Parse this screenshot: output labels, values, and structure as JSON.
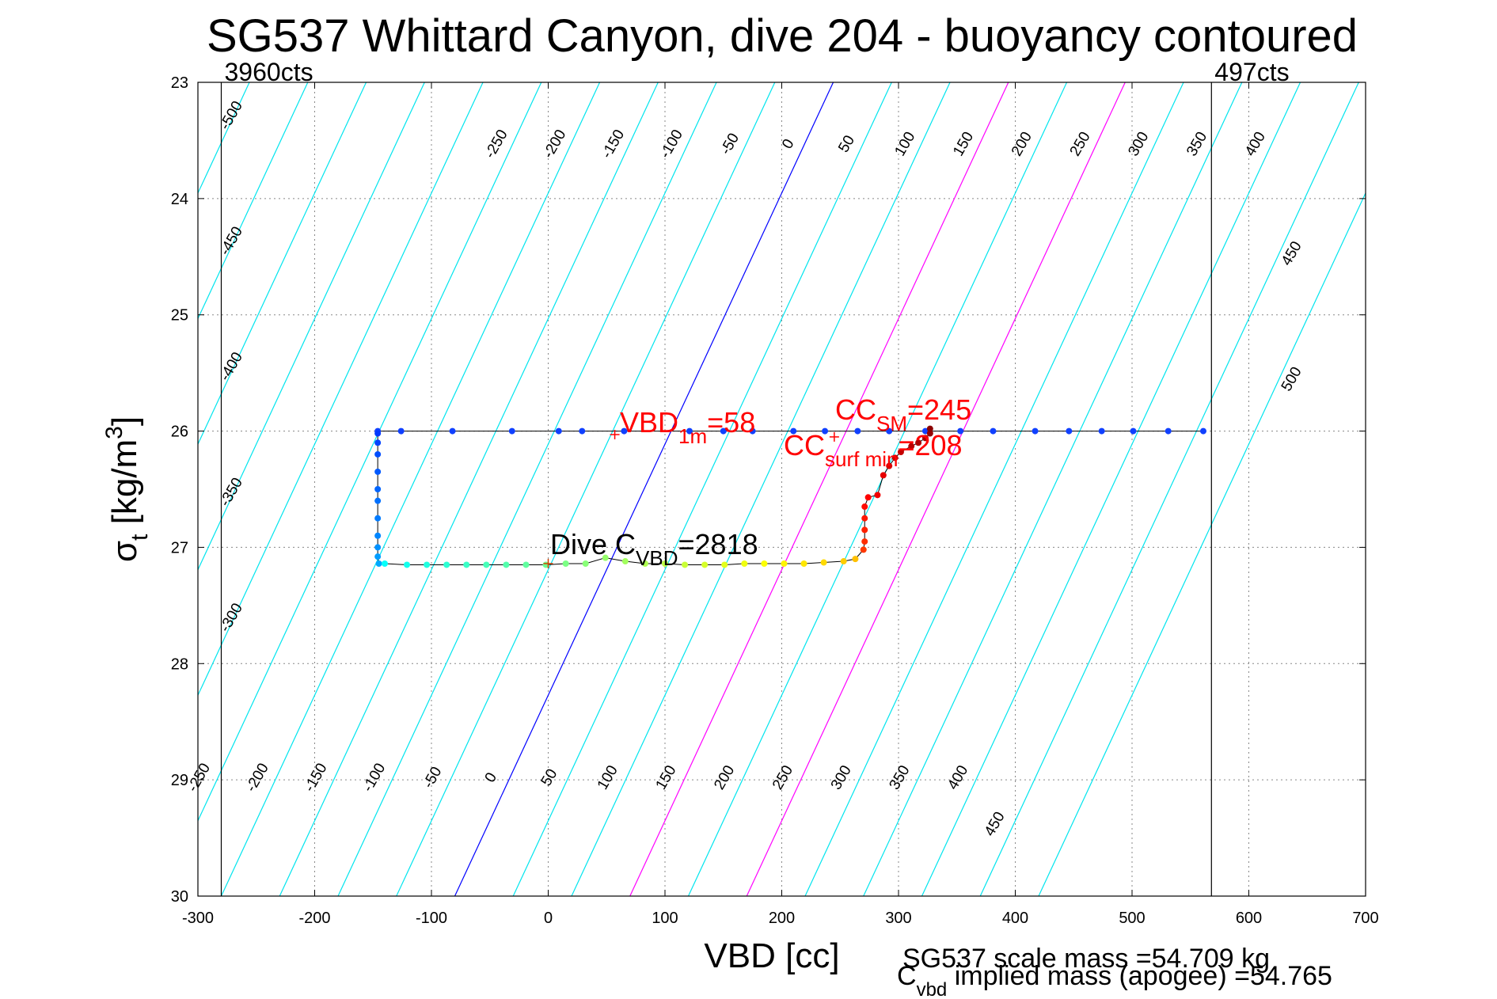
{
  "chart_data": {
    "type": "scatter",
    "title": "SG537 Whittard Canyon, dive 204 - buoyancy contoured",
    "xlabel": "VBD [cc]",
    "ylabel": {
      "sigma": "σ",
      "sub": "t",
      "unit": " [kg/m",
      "sup": "3",
      "close": "]"
    },
    "xlim": [
      -300,
      700
    ],
    "ylim": [
      23,
      30
    ],
    "y_reversed": true,
    "grid": true,
    "xticks": [
      -300,
      -200,
      -100,
      0,
      100,
      200,
      300,
      400,
      500,
      600,
      700
    ],
    "yticks": [
      23,
      24,
      25,
      26,
      27,
      28,
      29,
      30
    ],
    "vertical_limits": [
      {
        "x": -280,
        "label": "3960cts"
      },
      {
        "x": 568,
        "label": "497cts"
      }
    ],
    "contours": {
      "levels": [
        -500,
        -450,
        -400,
        -350,
        -300,
        -250,
        -200,
        -150,
        -100,
        -50,
        0,
        50,
        100,
        150,
        200,
        250,
        300,
        350,
        400,
        450,
        500
      ],
      "base_x_at_30": -80,
      "x_per_contour": 50,
      "slope_cc_per_sigma": 46.3,
      "colors": {
        "default": "#00e5ee",
        "zero": "#0000ff",
        "highlight": "#ff00ff"
      },
      "highlight_levels": [
        150,
        250
      ],
      "top_labels": [
        "-250",
        "-200",
        "-150",
        "-100",
        "-50",
        "0",
        "50",
        "100",
        "150",
        "200",
        "250",
        "300",
        "350",
        "400"
      ],
      "bottom_labels": [
        "-250",
        "-200",
        "-150",
        "-100",
        "-50",
        "0",
        "50",
        "100",
        "150",
        "200",
        "250",
        "300",
        "350",
        "400"
      ],
      "left_labels": [
        "-500",
        "-450",
        "-400",
        "-350",
        "-300"
      ],
      "right_labels": [
        "450",
        "500"
      ],
      "extra_labels": [
        "450"
      ]
    },
    "series": [
      {
        "points_top_blue": [
          [
            -146,
            26.0
          ],
          [
            -126,
            26.0
          ],
          [
            -82,
            26.0
          ],
          [
            -31,
            26.0
          ],
          [
            9,
            26.0
          ],
          [
            29,
            26.0
          ],
          [
            65,
            26.0
          ],
          [
            121,
            26.0
          ],
          [
            150,
            26.0
          ],
          [
            175,
            26.0
          ],
          [
            210,
            26.0
          ],
          [
            237,
            26.0
          ],
          [
            265,
            26.0
          ],
          [
            292,
            26.0
          ],
          [
            323,
            26.0
          ],
          [
            353,
            26.0
          ],
          [
            381,
            26.0
          ],
          [
            417,
            26.0
          ],
          [
            446,
            26.0
          ],
          [
            474,
            26.0
          ],
          [
            501,
            26.0
          ],
          [
            531,
            26.0
          ],
          [
            561,
            26.0
          ]
        ],
        "points_left_descent": [
          [
            -146,
            26.02
          ],
          [
            -146,
            26.1
          ],
          [
            -146,
            26.2
          ],
          [
            -146,
            26.35
          ],
          [
            -146,
            26.5
          ],
          [
            -146,
            26.6
          ],
          [
            -146,
            26.75
          ],
          [
            -146,
            26.9
          ],
          [
            -146,
            27.0
          ],
          [
            -146,
            27.08
          ],
          [
            -145,
            27.14
          ]
        ],
        "points_bottom": [
          [
            -140,
            27.14
          ],
          [
            -121,
            27.15
          ],
          [
            -104,
            27.15
          ],
          [
            -87,
            27.15
          ],
          [
            -70,
            27.15
          ],
          [
            -53,
            27.15
          ],
          [
            -36,
            27.15
          ],
          [
            -19,
            27.15
          ],
          [
            -2,
            27.15
          ],
          [
            15,
            27.14
          ],
          [
            32,
            27.14
          ],
          [
            49,
            27.09
          ],
          [
            66,
            27.12
          ],
          [
            83,
            27.14
          ],
          [
            100,
            27.14
          ],
          [
            117,
            27.15
          ],
          [
            134,
            27.15
          ],
          [
            151,
            27.15
          ],
          [
            168,
            27.14
          ],
          [
            185,
            27.14
          ],
          [
            202,
            27.14
          ],
          [
            219,
            27.14
          ],
          [
            236,
            27.13
          ],
          [
            253,
            27.12
          ],
          [
            263,
            27.1
          ]
        ],
        "points_right_ascent": [
          [
            270,
            27.02
          ],
          [
            271,
            26.95
          ],
          [
            271,
            26.85
          ],
          [
            271,
            26.75
          ],
          [
            271,
            26.65
          ],
          [
            274,
            26.57
          ],
          [
            282,
            26.55
          ],
          [
            287,
            26.38
          ],
          [
            292,
            26.3
          ],
          [
            297,
            26.23
          ],
          [
            302,
            26.18
          ],
          [
            311,
            26.13
          ],
          [
            317,
            26.1
          ],
          [
            323,
            26.06
          ],
          [
            327,
            26.02
          ],
          [
            327,
            25.98
          ]
        ]
      }
    ],
    "annotations": {
      "vbd1m": {
        "text": "VBD",
        "sub": "1m",
        "tail": "=58",
        "marker_x": 57,
        "marker_y": 26.03
      },
      "ccsm": {
        "text": "CC",
        "sub": "SM",
        "tail": "=245"
      },
      "ccsurf": {
        "text": "CC",
        "sub": "surf min",
        "tail": "=208",
        "marker_x": 245,
        "marker_y": 26.05
      },
      "divec": {
        "text": "Dive C",
        "sub": "VBD",
        "tail": "=2818",
        "marker_x": 0,
        "marker_y": 27.14
      },
      "scale_mass": "SG537 scale mass =54.709 kg",
      "implied": {
        "main": "C",
        "sub": "vbd",
        "tail": " implied mass (apogee) =54.765"
      }
    }
  }
}
